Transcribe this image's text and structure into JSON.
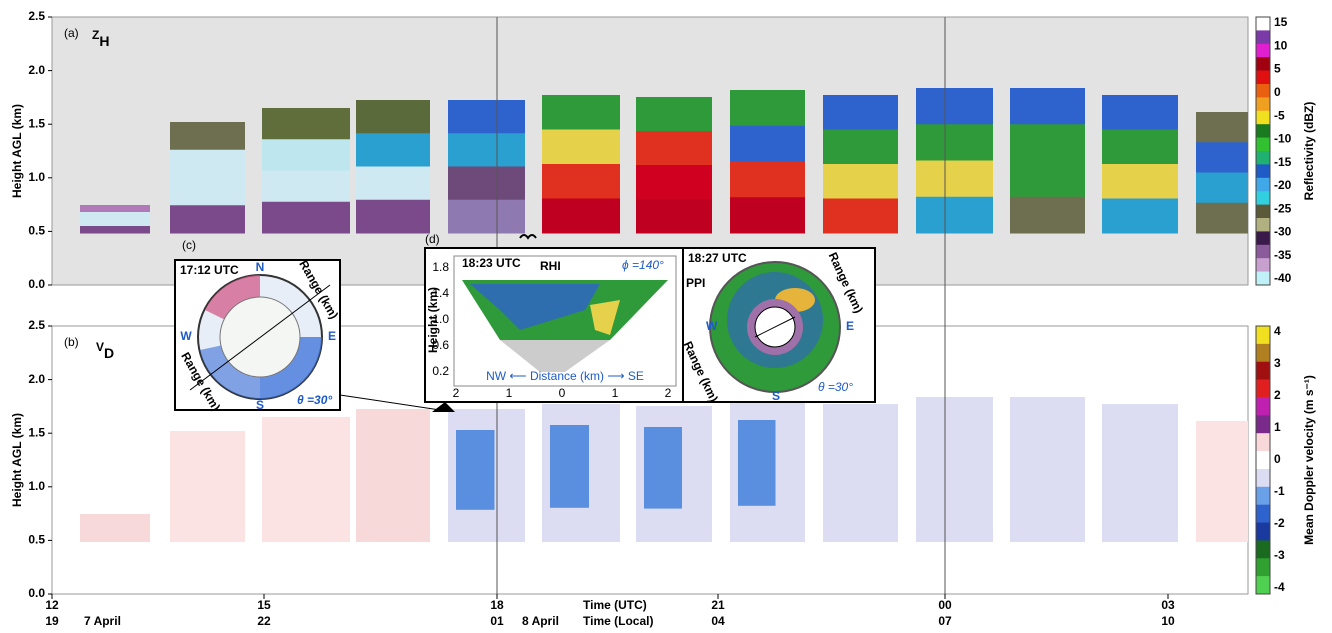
{
  "panel_a": {
    "label": "(a)",
    "var": "Z",
    "sub": "H",
    "ylabel": "Height AGL (km)",
    "yticks": [
      "0.0",
      "0.5",
      "1.0",
      "1.5",
      "2.0",
      "2.5"
    ],
    "colorbar": {
      "label": "Reflectivity (dBZ)",
      "ticks": [
        "15",
        "10",
        "5",
        "0",
        "-5",
        "-10",
        "-15",
        "-20",
        "-25",
        "-30",
        "-35",
        "-40"
      ]
    }
  },
  "panel_b": {
    "label": "(b)",
    "var": "V",
    "sub": "D",
    "ylabel": "Height AGL (km)",
    "yticks": [
      "0.0",
      "0.5",
      "1.0",
      "1.5",
      "2.0",
      "2.5"
    ],
    "colorbar": {
      "label": "Mean Doppler velocity (m s⁻¹)",
      "ticks": [
        "4",
        "3",
        "2",
        "1",
        "0",
        "-1",
        "-2",
        "-3",
        "-4"
      ]
    }
  },
  "x_axis": {
    "utc": [
      "12",
      "15",
      "18",
      "21",
      "00",
      "03"
    ],
    "local": [
      "19",
      "22",
      "01",
      "04",
      "07",
      "10"
    ],
    "utc_label": "Time (UTC)",
    "local_label": "Time (Local)",
    "date1": "7 April",
    "date2": "8 April"
  },
  "inset_c": {
    "label": "(c)",
    "time": "17:12 UTC",
    "n": "N",
    "s": "S",
    "e": "E",
    "w": "W",
    "range1": "Range (km)",
    "range2": "Range (km)",
    "theta": "θ =30°"
  },
  "inset_d": {
    "label": "(d)",
    "rhi_time": "18:23 UTC",
    "rhi": "RHI",
    "phi": "ϕ =140°",
    "ylabel": "Height (km)",
    "yticks": [
      "0.2",
      "0.6",
      "1.0",
      "1.4",
      "1.8"
    ],
    "xticks": [
      "2",
      "1",
      "0",
      "1",
      "2"
    ],
    "xlabel": "NW ⟵ Distance (km) ⟶ SE",
    "ppi_time": "18:27 UTC",
    "ppi": "PPI",
    "range1": "Range (km)",
    "range2": "Range (km)",
    "w": "W",
    "e": "E",
    "s": "S",
    "theta": "θ =30°"
  }
}
